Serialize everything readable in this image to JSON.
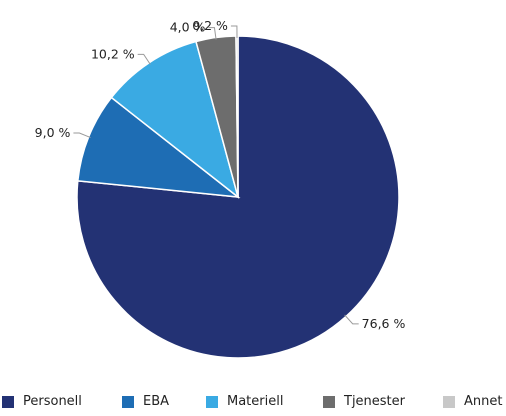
{
  "chart_data": {
    "type": "pie",
    "categories": [
      "Personell",
      "EBA",
      "Materiell",
      "Tjenester",
      "Annet"
    ],
    "values": [
      76.6,
      9.0,
      10.2,
      4.0,
      0.2
    ],
    "labels": [
      "76,6 %",
      "9,0 %",
      "10,2 %",
      "4,0 %",
      "0,2 %"
    ],
    "colors": [
      "#233274",
      "#1e6db4",
      "#3aaae3",
      "#6d6d6d",
      "#c8c8c8"
    ],
    "title": "",
    "legend_position": "bottom"
  }
}
